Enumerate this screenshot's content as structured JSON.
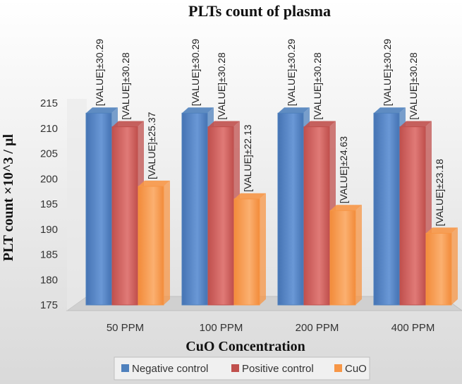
{
  "chart_data": {
    "type": "bar",
    "title": "PLTs count of plasma",
    "xlabel": "CuO Concentration",
    "ylabel": "PLT count ×10^3 / µl",
    "categories": [
      "50 PPM",
      "100 PPM",
      "200 PPM",
      "400 PPM"
    ],
    "ylim": [
      175,
      215
    ],
    "yticks": [
      175,
      180,
      185,
      190,
      195,
      200,
      205,
      210,
      215
    ],
    "grid": false,
    "legend_position": "bottom",
    "series": [
      {
        "name": "Negative control",
        "color": "#4f81bd",
        "values": [
          213,
          213,
          213,
          213
        ],
        "data_labels": [
          "[VALUE]±30.29",
          "[VALUE]±30.29",
          "[VALUE]±30.29",
          "[VALUE]±30.29"
        ]
      },
      {
        "name": "Positive control",
        "color": "#c0504d",
        "values": [
          210.3,
          210.3,
          210.3,
          210.3
        ],
        "data_labels": [
          "[VALUE]±30.28",
          "[VALUE]±30.28",
          "[VALUE]±30.28",
          "[VALUE]±30.28"
        ]
      },
      {
        "name": "CuO",
        "color": "#f79646",
        "values": [
          198.5,
          196,
          193.7,
          189.2
        ],
        "data_labels": [
          "[VALUE]±25.37",
          "[VALUE]±22.13",
          "[VALUE]±24.63",
          "[VALUE]±23.18"
        ]
      }
    ]
  }
}
